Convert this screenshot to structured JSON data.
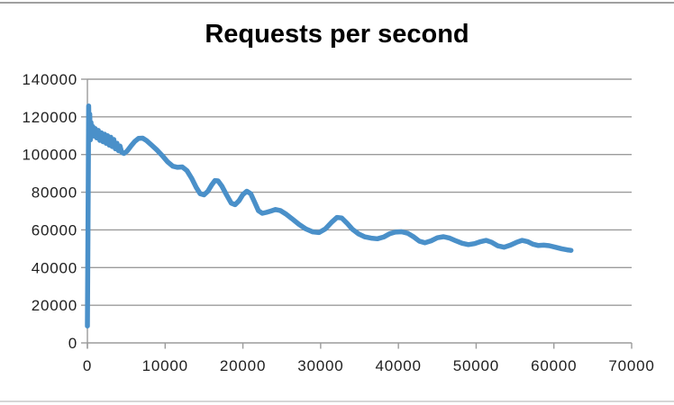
{
  "window": {
    "background": "#ffffff",
    "top_border_color": "#a0a0a0",
    "bottom_border_color": "#d6d6d6"
  },
  "chart_data": {
    "type": "line",
    "title": "Requests per second",
    "xlabel": "",
    "ylabel": "",
    "xlim": [
      0,
      70000
    ],
    "ylim": [
      0,
      140000
    ],
    "x_ticks": [
      0,
      10000,
      20000,
      30000,
      40000,
      50000,
      60000,
      70000
    ],
    "y_ticks": [
      0,
      20000,
      40000,
      60000,
      80000,
      100000,
      120000,
      140000
    ],
    "grid": "horizontal",
    "gridline_color": "#9b9b9b",
    "axis_color": "#9b9b9b",
    "tick_label_color": "#1f1f1f",
    "title_color": "#000000",
    "legend": "none",
    "series": [
      {
        "name": "Requests per second",
        "color": "#4A90C9",
        "stroke_width": 5.5,
        "points": [
          [
            0,
            9000
          ],
          [
            60,
            48000
          ],
          [
            120,
            90000
          ],
          [
            160,
            125800
          ],
          [
            220,
            111500
          ],
          [
            300,
            121500
          ],
          [
            380,
            107800
          ],
          [
            460,
            117000
          ],
          [
            560,
            112000
          ],
          [
            700,
            114800
          ],
          [
            850,
            109800
          ],
          [
            1000,
            113800
          ],
          [
            1200,
            108800
          ],
          [
            1400,
            112800
          ],
          [
            1600,
            107500
          ],
          [
            1800,
            111500
          ],
          [
            2000,
            106800
          ],
          [
            2200,
            110800
          ],
          [
            2400,
            106000
          ],
          [
            2600,
            110000
          ],
          [
            2800,
            105000
          ],
          [
            3000,
            109200
          ],
          [
            3200,
            104200
          ],
          [
            3400,
            108000
          ],
          [
            3600,
            103000
          ],
          [
            3800,
            106000
          ],
          [
            4000,
            102000
          ],
          [
            4200,
            104500
          ],
          [
            4400,
            101200
          ],
          [
            4700,
            100600
          ],
          [
            5100,
            101800
          ],
          [
            5600,
            104500
          ],
          [
            6100,
            107000
          ],
          [
            6600,
            108600
          ],
          [
            7100,
            108700
          ],
          [
            7600,
            107400
          ],
          [
            8200,
            105200
          ],
          [
            8900,
            102600
          ],
          [
            9600,
            99600
          ],
          [
            10300,
            96200
          ],
          [
            11000,
            93800
          ],
          [
            11600,
            93200
          ],
          [
            12200,
            93400
          ],
          [
            12800,
            91500
          ],
          [
            13400,
            87500
          ],
          [
            14000,
            82500
          ],
          [
            14500,
            79200
          ],
          [
            15000,
            78600
          ],
          [
            15500,
            80500
          ],
          [
            16000,
            84000
          ],
          [
            16400,
            86200
          ],
          [
            16800,
            86000
          ],
          [
            17300,
            83200
          ],
          [
            17900,
            78500
          ],
          [
            18500,
            74200
          ],
          [
            19000,
            73400
          ],
          [
            19500,
            75500
          ],
          [
            20000,
            78800
          ],
          [
            20500,
            80500
          ],
          [
            21000,
            79200
          ],
          [
            21500,
            74800
          ],
          [
            22000,
            70200
          ],
          [
            22500,
            68800
          ],
          [
            23000,
            69300
          ],
          [
            23600,
            70000
          ],
          [
            24200,
            70800
          ],
          [
            24800,
            70300
          ],
          [
            25500,
            68500
          ],
          [
            26300,
            66000
          ],
          [
            27200,
            63000
          ],
          [
            28100,
            60500
          ],
          [
            29000,
            58900
          ],
          [
            29800,
            58600
          ],
          [
            30600,
            60500
          ],
          [
            31400,
            64000
          ],
          [
            32100,
            66600
          ],
          [
            32700,
            66300
          ],
          [
            33400,
            63500
          ],
          [
            34100,
            60300
          ],
          [
            34900,
            57800
          ],
          [
            35700,
            56300
          ],
          [
            36500,
            55600
          ],
          [
            37300,
            55300
          ],
          [
            38100,
            56200
          ],
          [
            38900,
            58000
          ],
          [
            39600,
            58800
          ],
          [
            40400,
            59000
          ],
          [
            41200,
            58200
          ],
          [
            42000,
            56200
          ],
          [
            42700,
            54000
          ],
          [
            43400,
            53200
          ],
          [
            44200,
            54200
          ],
          [
            45000,
            55800
          ],
          [
            45800,
            56400
          ],
          [
            46600,
            55600
          ],
          [
            47400,
            54200
          ],
          [
            48200,
            52900
          ],
          [
            49000,
            52200
          ],
          [
            49800,
            52700
          ],
          [
            50600,
            53800
          ],
          [
            51300,
            54400
          ],
          [
            52000,
            53400
          ],
          [
            52800,
            51500
          ],
          [
            53600,
            50800
          ],
          [
            54400,
            51900
          ],
          [
            55200,
            53400
          ],
          [
            55900,
            54400
          ],
          [
            56600,
            53800
          ],
          [
            57300,
            52400
          ],
          [
            58000,
            51700
          ],
          [
            58700,
            51900
          ],
          [
            59400,
            51600
          ],
          [
            60200,
            50800
          ],
          [
            61000,
            50000
          ],
          [
            61700,
            49400
          ],
          [
            62200,
            49100
          ]
        ]
      }
    ]
  }
}
